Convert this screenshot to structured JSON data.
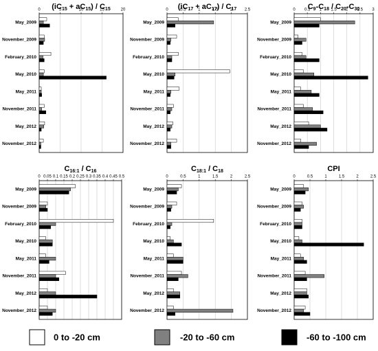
{
  "chart_data": [
    {
      "type": "hbar",
      "title": [
        {
          "text": "(iC"
        },
        {
          "text": "15",
          "sub": true
        },
        {
          "text": " + aC"
        },
        {
          "text": "15",
          "sub": true
        },
        {
          "text": ") / C"
        },
        {
          "text": "15",
          "sub": true
        }
      ],
      "categories": [
        "May_2009",
        "November_2009",
        "February_2010",
        "May_2010",
        "May_2011",
        "November_2011",
        "May_2012",
        "November_2012"
      ],
      "series": [
        {
          "name": "0 to -20 cm",
          "color": "#ffffff",
          "values": [
            1.8,
            1.2,
            2.8,
            1.2,
            0.5,
            1.2,
            1.3,
            1.0
          ]
        },
        {
          "name": "-20 to -60 cm",
          "color": "#808080",
          "values": [
            1.0,
            1.3,
            0.9,
            1.0,
            0.5,
            0.6,
            1.1,
            0.4
          ]
        },
        {
          "name": "-60 to -100 cm",
          "color": "#000000",
          "values": [
            2.5,
            1.0,
            1.2,
            16.0,
            0.6,
            1.6,
            0.5,
            0.4
          ]
        }
      ],
      "xlim": [
        0,
        20
      ],
      "xticks": [
        0,
        5,
        10,
        15,
        20
      ],
      "grid": true
    },
    {
      "type": "hbar",
      "title": [
        {
          "text": "(iC"
        },
        {
          "text": "17",
          "sub": true
        },
        {
          "text": " + aC"
        },
        {
          "text": "17",
          "sub": true
        },
        {
          "text": ") / C"
        },
        {
          "text": "17",
          "sub": true
        }
      ],
      "categories": [
        "May_2009",
        "November_2009",
        "February_2010",
        "May_2010",
        "May_2011",
        "November_2011",
        "May_2012",
        "November_2012"
      ],
      "series": [
        {
          "color": "#ffffff",
          "values": [
            0.35,
            0.3,
            0.35,
            1.95,
            0.38,
            0.2,
            0.18,
            0.3
          ]
        },
        {
          "color": "#808080",
          "values": [
            1.45,
            0.12,
            0.15,
            0.25,
            0.12,
            0.15,
            0.15,
            0.12
          ]
        },
        {
          "color": "#000000",
          "values": [
            0.25,
            0.1,
            0.15,
            0.22,
            0.1,
            0.1,
            0.1,
            0.12
          ]
        }
      ],
      "xlim": [
        0,
        2.5
      ],
      "xticks": [
        0,
        0.5,
        1,
        1.5,
        2,
        2.5
      ],
      "grid": true
    },
    {
      "type": "hbar",
      "title": [
        {
          "text": "C"
        },
        {
          "text": "9",
          "sub": true
        },
        {
          "text": "-C"
        },
        {
          "text": "18",
          "sub": true
        },
        {
          "text": " / C"
        },
        {
          "text": "20",
          "sub": true
        },
        {
          "text": "-C"
        },
        {
          "text": "30",
          "sub": true
        }
      ],
      "categories": [
        "May_2009",
        "November_2009",
        "February_2010",
        "May_2010",
        "May_2011",
        "November_2011",
        "May_2012",
        "November_2012"
      ],
      "series": [
        {
          "color": "#ffffff",
          "values": [
            1.0,
            0.15,
            0.3,
            0.35,
            0.25,
            0.35,
            0.55,
            0.25
          ]
        },
        {
          "color": "#808080",
          "values": [
            2.3,
            0.45,
            0.45,
            0.75,
            0.65,
            0.7,
            1.0,
            0.85
          ]
        },
        {
          "color": "#000000",
          "values": [
            0.95,
            0.3,
            0.95,
            2.8,
            0.95,
            1.1,
            1.25,
            0.55
          ]
        }
      ],
      "xlim": [
        0,
        3
      ],
      "xticks": [
        0,
        0.5,
        1,
        1.5,
        2,
        2.5,
        3
      ],
      "grid": true
    },
    {
      "type": "hbar",
      "title": [
        {
          "text": "C"
        },
        {
          "text": "16:1",
          "sub": true
        },
        {
          "text": " / C"
        },
        {
          "text": "16",
          "sub": true
        }
      ],
      "categories": [
        "May_2009",
        "November_2009",
        "February_2010",
        "May_2010",
        "May_2011",
        "November_2011",
        "May_2012",
        "November_2012"
      ],
      "series": [
        {
          "color": "#ffffff",
          "values": [
            0.22,
            0.05,
            0.45,
            0.04,
            0.04,
            0.16,
            0.05,
            0.05
          ]
        },
        {
          "color": "#808080",
          "values": [
            0.19,
            0.04,
            0.1,
            0.08,
            0.1,
            0.1,
            0.1,
            0.1
          ]
        },
        {
          "color": "#000000",
          "values": [
            0.18,
            0.05,
            0.07,
            0.08,
            0.06,
            0.12,
            0.35,
            0.08
          ]
        }
      ],
      "xlim": [
        0,
        0.5
      ],
      "xticks": [
        0,
        0.05,
        0.1,
        0.15,
        0.2,
        0.25,
        0.3,
        0.35,
        0.4,
        0.45,
        0.5
      ],
      "grid": true
    },
    {
      "type": "hbar",
      "title": [
        {
          "text": "C"
        },
        {
          "text": "18:1",
          "sub": true
        },
        {
          "text": " / C"
        },
        {
          "text": "18",
          "sub": true
        }
      ],
      "categories": [
        "May_2009",
        "November_2009",
        "February_2010",
        "May_2010",
        "May_2011",
        "November_2011",
        "May_2012",
        "November_2012"
      ],
      "series": [
        {
          "color": "#ffffff",
          "values": [
            0.45,
            0.3,
            1.45,
            0.1,
            0.2,
            0.45,
            0.2,
            0.2
          ]
        },
        {
          "color": "#808080",
          "values": [
            0.35,
            0.15,
            0.15,
            0.2,
            0.5,
            0.65,
            0.4,
            2.05
          ]
        },
        {
          "color": "#000000",
          "values": [
            0.3,
            0.12,
            0.1,
            0.45,
            0.5,
            0.35,
            0.4,
            0.25
          ]
        }
      ],
      "xlim": [
        0,
        2.5
      ],
      "xticks": [
        0,
        0.5,
        1,
        1.5,
        2,
        2.5
      ],
      "grid": true
    },
    {
      "type": "hbar",
      "title": [
        {
          "text": "CPI"
        }
      ],
      "categories": [
        "May_2009",
        "November_2009",
        "February_2010",
        "May_2010",
        "May_2011",
        "November_2011",
        "May_2012",
        "November_2012"
      ],
      "series": [
        {
          "color": "#ffffff",
          "values": [
            0.3,
            0.25,
            0.25,
            0.15,
            0.2,
            0.35,
            0.4,
            0.35
          ]
        },
        {
          "color": "#808080",
          "values": [
            0.45,
            0.3,
            0.25,
            0.25,
            0.3,
            0.95,
            0.4,
            0.3
          ]
        },
        {
          "color": "#000000",
          "values": [
            0.35,
            0.2,
            0.25,
            2.2,
            0.4,
            0.4,
            0.45,
            0.5
          ]
        }
      ],
      "xlim": [
        0,
        2.5
      ],
      "xticks": [
        0,
        0.5,
        1,
        1.5,
        2,
        2.5
      ],
      "grid": true
    }
  ]
}
